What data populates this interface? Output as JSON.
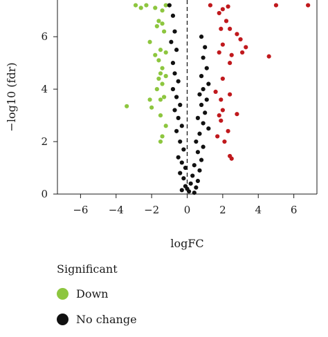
{
  "chart_data": {
    "type": "scatter",
    "xlabel": "logFC",
    "ylabel": "−log10 (fdr)",
    "xlim": [
      -7.3,
      7.3
    ],
    "ylim": [
      0,
      7.4
    ],
    "xticks": [
      -6,
      -4,
      -2,
      0,
      2,
      4,
      6
    ],
    "xtick_labels": [
      "−6",
      "−4",
      "−2",
      "0",
      "2",
      "4",
      "6"
    ],
    "yticks": [
      0,
      2,
      4,
      6
    ],
    "ytick_labels": [
      "0",
      "2",
      "4",
      "6"
    ],
    "reference_line": {
      "x": 0,
      "style": "dashed"
    },
    "legend": {
      "title": "Significant",
      "placement": "bottom-left",
      "entries": [
        {
          "label": "Down",
          "color": "#8dc63f"
        },
        {
          "label": "No change",
          "color": "#111111"
        }
      ]
    },
    "series": [
      {
        "name": "Down",
        "color": "#8dc63f",
        "points": [
          [
            -2.9,
            7.2
          ],
          [
            -2.6,
            7.1
          ],
          [
            -2.3,
            7.2
          ],
          [
            -1.8,
            7.1
          ],
          [
            -1.4,
            7.0
          ],
          [
            -1.2,
            7.2
          ],
          [
            -1.6,
            6.6
          ],
          [
            -1.4,
            6.5
          ],
          [
            -1.7,
            6.4
          ],
          [
            -1.3,
            6.2
          ],
          [
            -2.1,
            5.8
          ],
          [
            -1.5,
            5.5
          ],
          [
            -1.8,
            5.3
          ],
          [
            -1.2,
            5.4
          ],
          [
            -1.6,
            5.1
          ],
          [
            -1.4,
            4.8
          ],
          [
            -1.5,
            4.6
          ],
          [
            -1.2,
            4.5
          ],
          [
            -1.6,
            4.4
          ],
          [
            -1.4,
            4.2
          ],
          [
            -1.7,
            4.0
          ],
          [
            -1.3,
            3.7
          ],
          [
            -2.1,
            3.6
          ],
          [
            -1.5,
            3.6
          ],
          [
            -3.4,
            3.35
          ],
          [
            -2.0,
            3.3
          ],
          [
            -1.5,
            3.0
          ],
          [
            -1.2,
            2.6
          ],
          [
            -1.4,
            2.2
          ],
          [
            -1.5,
            2.0
          ]
        ]
      },
      {
        "name": "No change",
        "color": "#111111",
        "points": [
          [
            -1.0,
            7.2
          ],
          [
            -0.8,
            6.8
          ],
          [
            -0.7,
            6.2
          ],
          [
            -0.9,
            5.8
          ],
          [
            -0.6,
            5.5
          ],
          [
            -0.8,
            5.0
          ],
          [
            -0.7,
            4.6
          ],
          [
            -0.5,
            4.3
          ],
          [
            -0.8,
            4.0
          ],
          [
            -0.6,
            3.7
          ],
          [
            -0.4,
            3.4
          ],
          [
            -0.7,
            3.2
          ],
          [
            -0.5,
            2.9
          ],
          [
            -0.3,
            2.6
          ],
          [
            -0.6,
            2.4
          ],
          [
            -0.4,
            2.0
          ],
          [
            -0.2,
            1.7
          ],
          [
            -0.5,
            1.4
          ],
          [
            -0.3,
            1.2
          ],
          [
            -0.1,
            1.0
          ],
          [
            -0.4,
            0.8
          ],
          [
            -0.2,
            0.6
          ],
          [
            -0.1,
            0.3
          ],
          [
            -0.3,
            0.15
          ],
          [
            0.8,
            6.0
          ],
          [
            1.0,
            5.6
          ],
          [
            0.9,
            5.2
          ],
          [
            1.1,
            4.8
          ],
          [
            0.8,
            4.5
          ],
          [
            1.2,
            4.2
          ],
          [
            0.9,
            4.0
          ],
          [
            0.7,
            3.8
          ],
          [
            1.1,
            3.6
          ],
          [
            0.8,
            3.4
          ],
          [
            1.0,
            3.1
          ],
          [
            0.6,
            2.9
          ],
          [
            0.9,
            2.7
          ],
          [
            1.2,
            2.5
          ],
          [
            0.7,
            2.3
          ],
          [
            0.5,
            2.0
          ],
          [
            0.9,
            1.8
          ],
          [
            0.6,
            1.6
          ],
          [
            0.8,
            1.3
          ],
          [
            0.4,
            1.1
          ],
          [
            0.7,
            0.9
          ],
          [
            0.3,
            0.7
          ],
          [
            0.6,
            0.5
          ],
          [
            0.2,
            0.4
          ],
          [
            0.5,
            0.25
          ],
          [
            0.1,
            0.1
          ],
          [
            0.4,
            0.05
          ],
          [
            0.0,
            0.2
          ]
        ]
      },
      {
        "name": "",
        "color": "#c0191d",
        "points": [
          [
            1.3,
            7.2
          ],
          [
            1.8,
            6.9
          ],
          [
            2.0,
            7.05
          ],
          [
            2.3,
            7.15
          ],
          [
            5.0,
            7.2
          ],
          [
            6.8,
            7.2
          ],
          [
            2.2,
            6.6
          ],
          [
            1.9,
            6.3
          ],
          [
            2.4,
            6.3
          ],
          [
            2.8,
            6.1
          ],
          [
            3.0,
            5.9
          ],
          [
            3.3,
            5.6
          ],
          [
            2.0,
            5.7
          ],
          [
            1.8,
            5.4
          ],
          [
            3.1,
            5.4
          ],
          [
            2.5,
            5.3
          ],
          [
            4.6,
            5.25
          ],
          [
            2.4,
            5.0
          ],
          [
            2.0,
            4.4
          ],
          [
            1.6,
            3.9
          ],
          [
            1.9,
            3.6
          ],
          [
            2.4,
            3.8
          ],
          [
            2.0,
            3.2
          ],
          [
            1.8,
            3.0
          ],
          [
            2.8,
            3.05
          ],
          [
            1.9,
            2.8
          ],
          [
            2.3,
            2.4
          ],
          [
            1.7,
            2.2
          ],
          [
            2.1,
            2.0
          ],
          [
            2.4,
            1.45
          ],
          [
            2.5,
            1.35
          ]
        ]
      }
    ]
  }
}
